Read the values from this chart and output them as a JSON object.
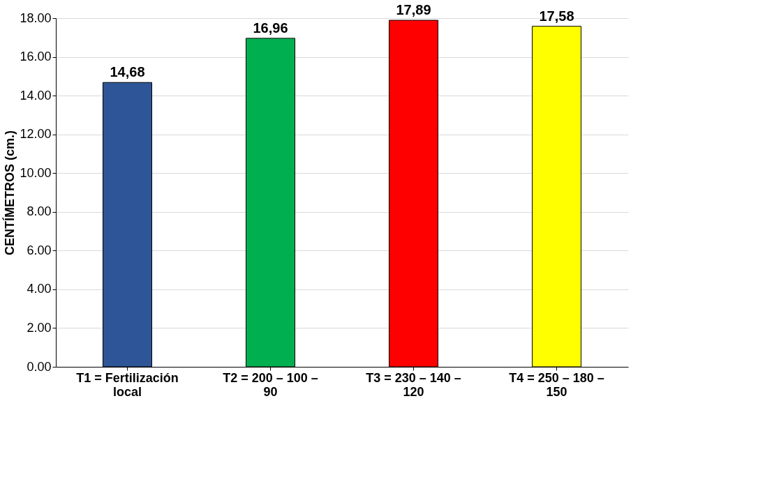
{
  "chart_data": {
    "type": "bar",
    "ylabel": "CENTÍMETROS (cm.)",
    "categories": [
      "T1 = Fertilización local",
      "T2 = 200 – 100 – 90",
      "T3 = 230 – 140 – 120",
      "T4 = 250 – 180 – 150"
    ],
    "values": [
      14.68,
      16.96,
      17.89,
      17.58
    ],
    "colors": [
      "#2e5597",
      "#00b050",
      "#ff0000",
      "#ffff00"
    ],
    "value_labels": [
      "14,68",
      "16,96",
      "17,89",
      "17,58"
    ],
    "ylim": [
      0,
      18
    ],
    "yticks": [
      {
        "value": 0,
        "label": "0.00"
      },
      {
        "value": 2,
        "label": "2.00"
      },
      {
        "value": 4,
        "label": "4.00"
      },
      {
        "value": 6,
        "label": "6.00"
      },
      {
        "value": 8,
        "label": "8.00"
      },
      {
        "value": 10,
        "label": "10.00"
      },
      {
        "value": 12,
        "label": "12.00"
      },
      {
        "value": 14,
        "label": "14.00"
      },
      {
        "value": 16,
        "label": "16.00"
      },
      {
        "value": 18,
        "label": "18.00"
      }
    ],
    "grid": "y",
    "legend": false
  }
}
